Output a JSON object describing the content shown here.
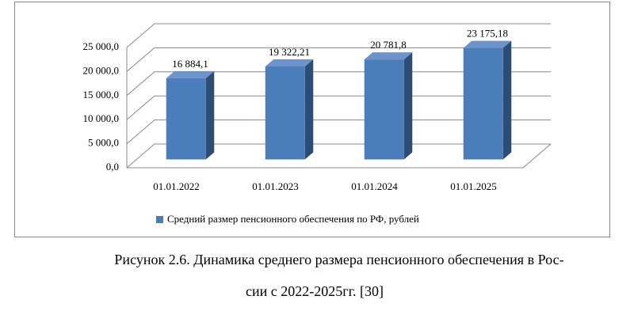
{
  "chart_data": {
    "type": "bar3d",
    "categories": [
      "01.01.2022",
      "01.01.2023",
      "01.01.2024",
      "01.01.2025"
    ],
    "series": [
      {
        "name": "Средний размер пенсионного обеспечения по РФ, рублей",
        "color": "#4a7ebb",
        "values": [
          16884.1,
          19322.21,
          20781.8,
          23175.18
        ],
        "value_labels": [
          "16 884,1",
          "19 322,21",
          "20 781,8",
          "23 175,18"
        ]
      }
    ],
    "ylim": [
      0,
      25000
    ],
    "yticks": [
      {
        "value": 0,
        "label": "0,0"
      },
      {
        "value": 5000,
        "label": "5 000,0"
      },
      {
        "value": 10000,
        "label": "10 000,0"
      },
      {
        "value": 15000,
        "label": "15 000,0"
      },
      {
        "value": 20000,
        "label": "20 000,0"
      },
      {
        "value": 25000,
        "label": "25 000,0"
      }
    ],
    "grid": true,
    "legend": "bottom"
  },
  "caption": [
    "Рисунок 2.6. Динамика среднего размера пенсионного обеспечения в Рос-",
    "сии с 2022-2025гг. [30]"
  ]
}
